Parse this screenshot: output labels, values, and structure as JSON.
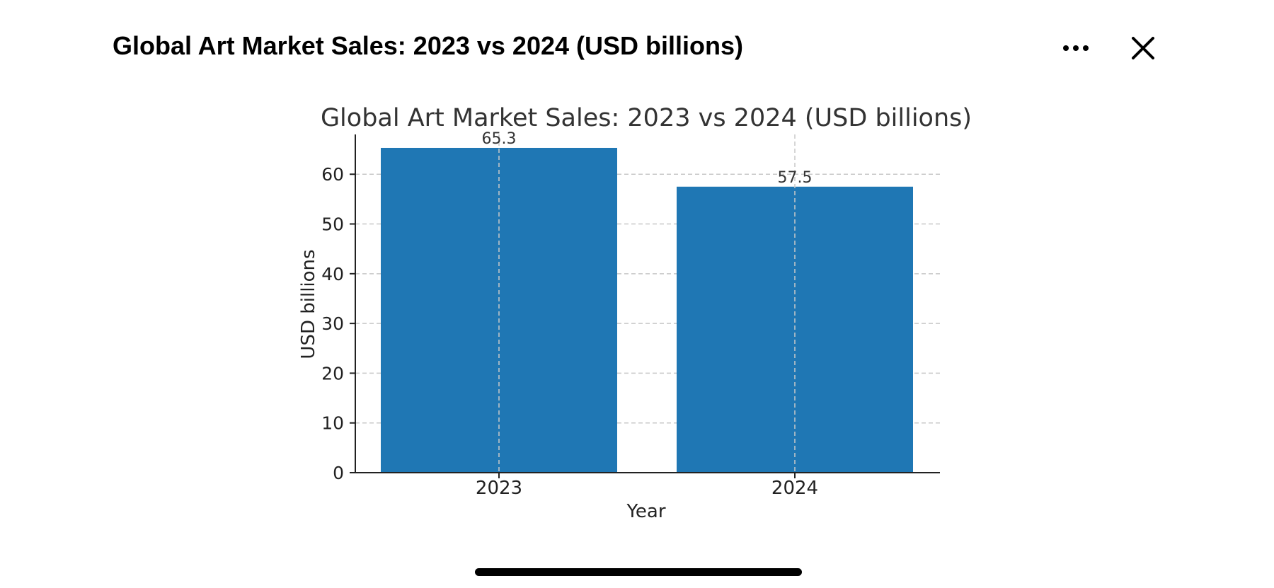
{
  "header": {
    "title": "Global Art Market Sales: 2023 vs 2024 (USD billions)",
    "more_icon": "more-horizontal-icon",
    "close_icon": "close-icon"
  },
  "colors": {
    "bar": "#1f77b4",
    "grid": "#c8c8c8",
    "axis": "#222222",
    "text": "#333333"
  },
  "chart_data": {
    "type": "bar",
    "title": "Global Art Market Sales: 2023 vs 2024 (USD billions)",
    "categories": [
      "2023",
      "2024"
    ],
    "values": [
      65.3,
      57.5
    ],
    "data_labels": [
      "65.3",
      "57.5"
    ],
    "xlabel": "Year",
    "ylabel": "USD billions",
    "ylim": [
      0,
      68
    ],
    "yticks": [
      0,
      10,
      20,
      30,
      40,
      50,
      60
    ],
    "ytick_labels": [
      "0",
      "10",
      "20",
      "30",
      "40",
      "50",
      "60"
    ],
    "grid": true,
    "grid_style": "dashed"
  }
}
